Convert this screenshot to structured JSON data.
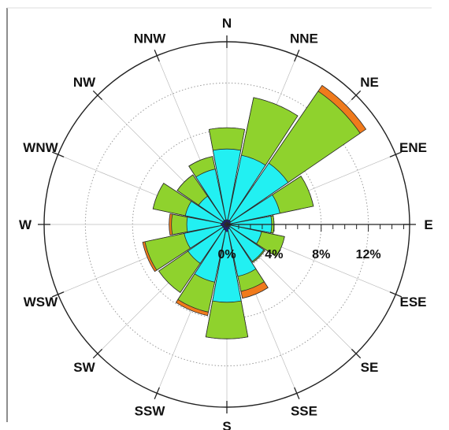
{
  "chart_data": {
    "type": "wind-rose",
    "directions": [
      "N",
      "NNE",
      "NE",
      "ENE",
      "E",
      "ESE",
      "SE",
      "SSE",
      "S",
      "SSW",
      "SW",
      "WSW",
      "W",
      "WNW",
      "NW",
      "NNW"
    ],
    "ring_values": [
      0,
      4,
      8,
      12
    ],
    "ring_tick_labels": [
      "0%",
      "4%",
      "8%",
      "12%"
    ],
    "rmax": 15.5,
    "units": "%",
    "colors": {
      "band1": "#1a1aa8",
      "band2": "#22f0f2",
      "band3": "#8fd22d",
      "band4": "#f07a1c"
    },
    "series": [
      {
        "color_key": "band1",
        "values": [
          0.4,
          0.4,
          0.4,
          0.3,
          0.4,
          0.3,
          0.3,
          0.4,
          0.6,
          0.5,
          0.4,
          0.4,
          0.5,
          0.4,
          0.4,
          0.4
        ]
      },
      {
        "color_key": "band2",
        "values": [
          6.4,
          6.0,
          6.3,
          4.6,
          3.8,
          3.0,
          3.8,
          4.5,
          6.6,
          5.0,
          4.0,
          3.7,
          3.4,
          3.6,
          2.9,
          4.8
        ]
      },
      {
        "color_key": "band3",
        "values": [
          8.2,
          11.0,
          13.7,
          7.5,
          4.0,
          5.0,
          3.9,
          5.8,
          9.7,
          7.6,
          7.0,
          7.1,
          4.7,
          6.4,
          5.1,
          5.9
        ]
      },
      {
        "color_key": "band4",
        "values": [
          8.2,
          11.0,
          14.3,
          7.5,
          4.0,
          5.0,
          3.9,
          6.4,
          9.7,
          7.9,
          7.0,
          7.3,
          4.9,
          6.4,
          5.1,
          5.9
        ]
      }
    ]
  }
}
